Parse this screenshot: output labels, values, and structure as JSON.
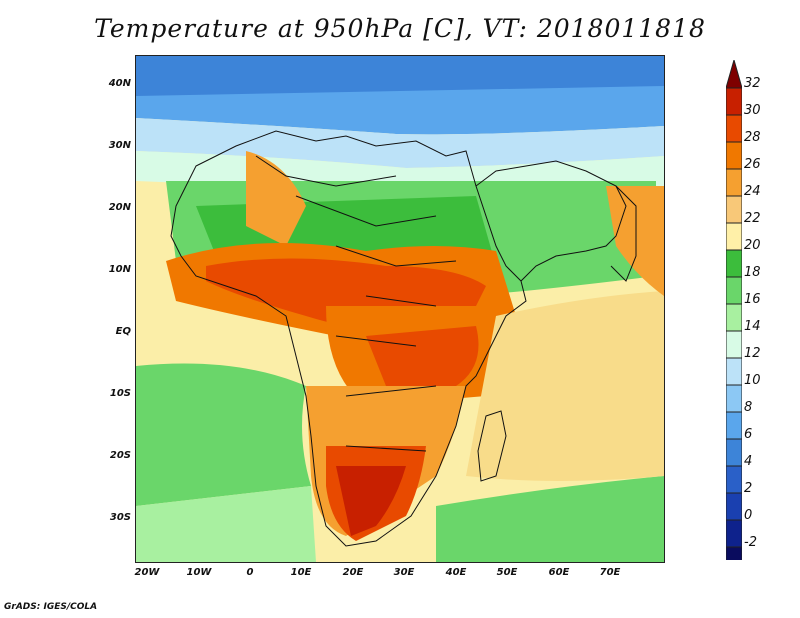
{
  "title": "Temperature at 950hPa [C], VT: 2018011818",
  "footer": "GrADS: IGES/COLA",
  "lat_labels": [
    "40N",
    "30N",
    "20N",
    "10N",
    "EQ",
    "10S",
    "20S",
    "30S"
  ],
  "lon_labels": [
    "20W",
    "10W",
    "0",
    "10E",
    "20E",
    "30E",
    "40E",
    "50E",
    "60E",
    "70E"
  ],
  "colorbar": {
    "labels": [
      "32",
      "30",
      "28",
      "26",
      "24",
      "22",
      "20",
      "18",
      "16",
      "14",
      "12",
      "10",
      "8",
      "6",
      "4",
      "2",
      "0",
      "-2"
    ],
    "colors": [
      "#7e0000",
      "#c82000",
      "#e84a00",
      "#f07800",
      "#f5a030",
      "#f8c878",
      "#fff0a8",
      "#3cbd3c",
      "#6ad66a",
      "#a8f0a0",
      "#d8fbe6",
      "#bce2f8",
      "#8cc8f4",
      "#5aa6ec",
      "#3d84d8",
      "#2a60c8",
      "#1a40b0",
      "#0e228c",
      "#0a0c5e",
      "#d8d0f4"
    ]
  },
  "field_colors": {
    "ocean_warm": "#fbeea8",
    "ocean_mid": "#f8dc8a",
    "green_dark": "#3cbd3c",
    "green_mid": "#6ad66a",
    "green_light": "#a8f0a0",
    "cool_light": "#d8fbe6",
    "cool_sky": "#bce2f8",
    "cool_blue": "#8cc8f4",
    "cold_blue": "#5aa6ec",
    "cold_deep": "#3d84d8",
    "hot_orange": "#f5a030",
    "hot_dark": "#f07800",
    "hot_red": "#e84a00",
    "hot_deep": "#c82000"
  }
}
